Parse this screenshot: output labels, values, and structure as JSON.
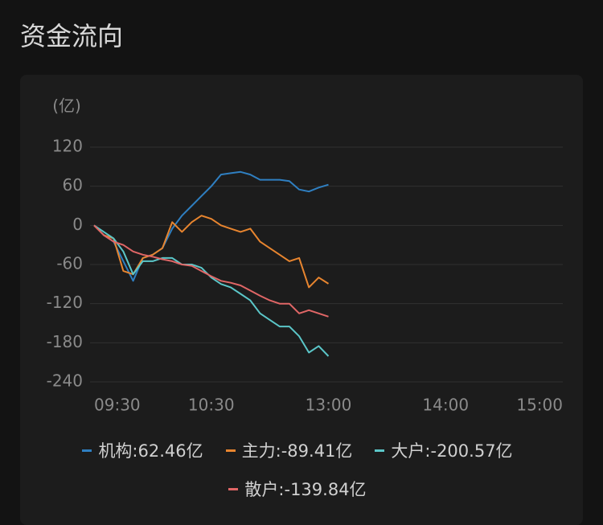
{
  "header": {
    "title": "资金流向"
  },
  "chart_data": {
    "type": "line",
    "y_label": "(亿)",
    "x": [
      0,
      5,
      10,
      15,
      20,
      25,
      30,
      35,
      40,
      45,
      50,
      55,
      60,
      65,
      70,
      75,
      80,
      85,
      90,
      95,
      100,
      105,
      110,
      115,
      120
    ],
    "xlim": [
      0,
      240
    ],
    "xticks": [
      {
        "value": 0,
        "label": "09:30"
      },
      {
        "value": 60,
        "label": "10:30"
      },
      {
        "value": 120,
        "label": "13:00"
      },
      {
        "value": 180,
        "label": "14:00"
      },
      {
        "value": 240,
        "label": "15:00"
      }
    ],
    "ylim": [
      -240,
      120
    ],
    "yticks": [
      120,
      60,
      0,
      -60,
      -120,
      -180,
      -240
    ],
    "grid": true,
    "legend": "bottom",
    "series": [
      {
        "name": "机构:62.46亿",
        "color": "#2f7fc1",
        "values": [
          0,
          -15,
          -25,
          -55,
          -85,
          -50,
          -45,
          -35,
          -5,
          15,
          30,
          45,
          60,
          78,
          80,
          82,
          78,
          70,
          70,
          70,
          68,
          55,
          52,
          58,
          62.46
        ]
      },
      {
        "name": "主力:-89.41亿",
        "color": "#e8852f",
        "values": [
          0,
          -15,
          -20,
          -70,
          -75,
          -50,
          -45,
          -35,
          5,
          -10,
          5,
          15,
          10,
          0,
          -5,
          -10,
          -5,
          -25,
          -35,
          -45,
          -55,
          -50,
          -95,
          -80,
          -89.41
        ]
      },
      {
        "name": "大户:-200.57亿",
        "color": "#5bc6c8",
        "values": [
          0,
          -10,
          -20,
          -40,
          -75,
          -55,
          -55,
          -50,
          -50,
          -60,
          -60,
          -65,
          -80,
          -90,
          -95,
          -105,
          -115,
          -135,
          -145,
          -155,
          -155,
          -170,
          -195,
          -185,
          -200.57
        ]
      },
      {
        "name": "散户:-139.84亿",
        "color": "#e06666",
        "values": [
          0,
          -15,
          -25,
          -30,
          -40,
          -45,
          -48,
          -52,
          -55,
          -60,
          -62,
          -70,
          -78,
          -85,
          -88,
          -92,
          -100,
          -108,
          -115,
          -120,
          -120,
          -135,
          -130,
          -135,
          -139.84
        ]
      }
    ]
  }
}
